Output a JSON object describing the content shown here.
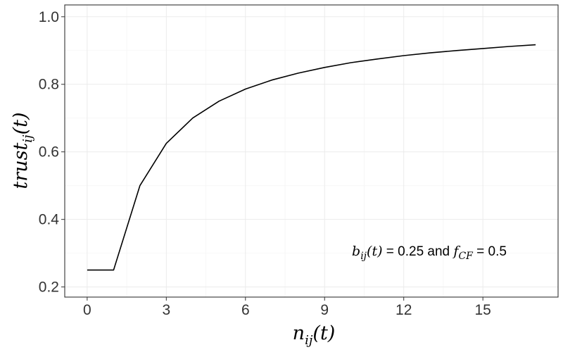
{
  "chart_data": {
    "type": "line",
    "xlabel": {
      "base": "n",
      "sub": "ij",
      "arg": "(t)"
    },
    "ylabel": {
      "base": "trust",
      "sub": "ij",
      "arg": "(t)"
    },
    "xlim": [
      -0.85,
      17.85
    ],
    "ylim": [
      0.17,
      1.035
    ],
    "x_ticks": [
      0,
      3,
      6,
      9,
      12,
      15
    ],
    "x_tick_labels": [
      "0",
      "3",
      "6",
      "9",
      "12",
      "15"
    ],
    "y_ticks": [
      0.2,
      0.4,
      0.6,
      0.8,
      1.0
    ],
    "y_tick_labels": [
      "0.2",
      "0.4",
      "0.6",
      "0.8",
      "1.0"
    ],
    "grid": true,
    "series": [
      {
        "x": [
          0,
          1,
          2,
          3,
          4,
          5,
          6,
          7,
          8,
          9,
          10,
          11,
          12,
          13,
          14,
          15,
          16,
          17
        ],
        "y": [
          0.25,
          0.25,
          0.5,
          0.625,
          0.7,
          0.75,
          0.786,
          0.8125,
          0.833,
          0.85,
          0.864,
          0.875,
          0.885,
          0.893,
          0.9,
          0.906,
          0.912,
          0.917
        ]
      }
    ],
    "annotation": {
      "b_base": "b",
      "b_sub": "ij",
      "b_arg": "(t)",
      "b_rest": " = 0.25 and ",
      "f_base": "f",
      "f_sub": "CF",
      "f_rest": " = 0.5"
    },
    "colors": {
      "line": "#000000",
      "panel_border": "#333333",
      "grid_major": "#ebebeb",
      "grid_minor": "#f5f5f5"
    }
  }
}
